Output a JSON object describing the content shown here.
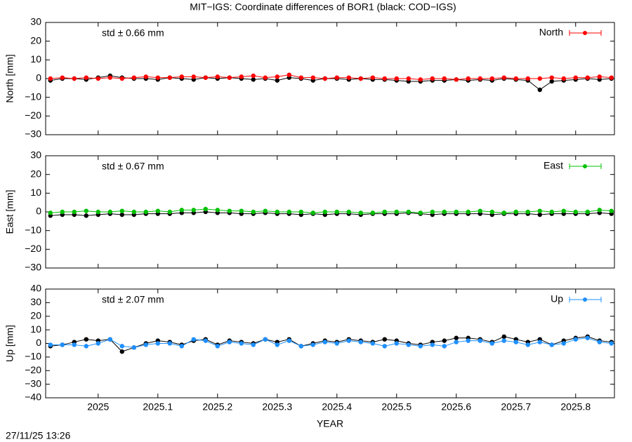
{
  "chart_data": [
    {
      "type": "line",
      "title": "MIT−IGS: Coordinate differences of BOR1 (black: COD−IGS)",
      "ylabel": "North [mm]",
      "annotation": "std ± 0.66 mm",
      "xlim": [
        2024.912,
        2025.865
      ],
      "ylim": [
        -30,
        30
      ],
      "yticks": [
        {
          "value": -30,
          "label": "−30"
        },
        {
          "value": -20,
          "label": "−20"
        },
        {
          "value": -10,
          "label": "−10"
        },
        0,
        10,
        20,
        30
      ],
      "x": [
        2024.92,
        2024.94,
        2024.96,
        2024.98,
        2025.0,
        2025.02,
        2025.04,
        2025.06,
        2025.08,
        2025.1,
        2025.12,
        2025.14,
        2025.16,
        2025.18,
        2025.2,
        2025.22,
        2025.24,
        2025.26,
        2025.28,
        2025.3,
        2025.32,
        2025.34,
        2025.36,
        2025.38,
        2025.4,
        2025.42,
        2025.44,
        2025.46,
        2025.48,
        2025.5,
        2025.52,
        2025.54,
        2025.56,
        2025.58,
        2025.6,
        2025.62,
        2025.64,
        2025.66,
        2025.68,
        2025.7,
        2025.72,
        2025.74,
        2025.76,
        2025.78,
        2025.8,
        2025.82,
        2025.84,
        2025.86
      ],
      "legend": "top-right",
      "series": [
        {
          "color": "#000000",
          "values": [
            -1,
            0,
            0,
            -0.5,
            0.5,
            1.5,
            0.5,
            0,
            0,
            -0.5,
            0.5,
            0,
            -0.5,
            0.5,
            0,
            0.5,
            0,
            -0.5,
            0,
            -1,
            0.5,
            0,
            -1,
            0,
            0,
            -0.5,
            0,
            -0.5,
            -0.5,
            -1,
            -1.5,
            -1.5,
            -1,
            -1,
            -0.5,
            -1,
            -0.5,
            -1,
            0,
            -0.5,
            -1,
            -6,
            -1.5,
            -1,
            -0.5,
            0,
            -0.5,
            0
          ]
        },
        {
          "name": "North",
          "color": "#ff0000",
          "values": [
            0,
            0.5,
            0,
            0.5,
            0,
            0.5,
            0,
            0.5,
            1,
            0.5,
            0.5,
            1,
            1,
            0.5,
            1,
            0.5,
            1,
            1.5,
            0.5,
            1,
            2,
            0.5,
            0.5,
            0,
            0.5,
            0.5,
            0,
            0.5,
            0,
            0,
            0,
            -0.5,
            0,
            0,
            -0.5,
            0,
            0,
            0,
            0.5,
            0,
            0,
            0,
            0.5,
            0,
            0.5,
            0.5,
            1,
            0.5
          ]
        }
      ]
    },
    {
      "type": "line",
      "ylabel": "East [mm]",
      "annotation": "std ± 0.67 mm",
      "xlim": [
        2024.912,
        2025.865
      ],
      "ylim": [
        -30,
        30
      ],
      "yticks": [
        {
          "value": -30,
          "label": "−30"
        },
        {
          "value": -20,
          "label": "−20"
        },
        {
          "value": -10,
          "label": "−10"
        },
        0,
        10,
        20,
        30
      ],
      "x": [
        2024.92,
        2024.94,
        2024.96,
        2024.98,
        2025.0,
        2025.02,
        2025.04,
        2025.06,
        2025.08,
        2025.1,
        2025.12,
        2025.14,
        2025.16,
        2025.18,
        2025.2,
        2025.22,
        2025.24,
        2025.26,
        2025.28,
        2025.3,
        2025.32,
        2025.34,
        2025.36,
        2025.38,
        2025.4,
        2025.42,
        2025.44,
        2025.46,
        2025.48,
        2025.5,
        2025.52,
        2025.54,
        2025.56,
        2025.58,
        2025.6,
        2025.62,
        2025.64,
        2025.66,
        2025.68,
        2025.7,
        2025.72,
        2025.74,
        2025.76,
        2025.78,
        2025.8,
        2025.82,
        2025.84,
        2025.86
      ],
      "legend": "top-right",
      "series": [
        {
          "color": "#000000",
          "values": [
            -2,
            -1.5,
            -1.5,
            -2,
            -1.5,
            -1,
            -1.5,
            -1.5,
            -1,
            -1,
            -1,
            -0.5,
            -0.5,
            0,
            -0.5,
            -0.5,
            -1,
            -1,
            -0.5,
            -1,
            -1,
            -1.5,
            -1,
            -1.5,
            -1,
            -1,
            -1.5,
            -1,
            -1,
            -1,
            -0.5,
            -1,
            -1.5,
            -1,
            -1,
            -1,
            -1,
            -1.5,
            -1,
            -1,
            -1,
            -1.5,
            -1,
            -1,
            -1,
            -1,
            -0.5,
            -1
          ]
        },
        {
          "name": "East",
          "color": "#00c000",
          "values": [
            -0.5,
            0,
            0,
            0.5,
            0,
            0,
            0.5,
            0,
            0,
            0.5,
            0,
            1,
            1,
            1.5,
            1,
            0.5,
            0.5,
            0,
            0.5,
            0,
            0,
            0,
            -0.5,
            0,
            0,
            0,
            -0.5,
            -0.5,
            0,
            0,
            0,
            -0.5,
            0,
            0,
            0,
            0,
            0.5,
            0,
            -0.5,
            0,
            0,
            0.5,
            0,
            0.5,
            0,
            0,
            1,
            0.5
          ]
        }
      ]
    },
    {
      "type": "line",
      "ylabel": "Up [mm]",
      "annotation": "std ± 2.07 mm",
      "xlabel": "YEAR",
      "xlim": [
        2024.912,
        2025.865
      ],
      "ylim": [
        -40,
        40
      ],
      "xticks": [
        2025,
        2025.1,
        2025.2,
        2025.3,
        2025.4,
        2025.5,
        2025.6,
        2025.7,
        2025.8
      ],
      "yticks": [
        {
          "value": -40,
          "label": "−40"
        },
        {
          "value": -30,
          "label": "−30"
        },
        {
          "value": -20,
          "label": "−20"
        },
        {
          "value": -10,
          "label": "−10"
        },
        0,
        10,
        20,
        30,
        40
      ],
      "x": [
        2024.92,
        2024.94,
        2024.96,
        2024.98,
        2025.0,
        2025.02,
        2025.04,
        2025.06,
        2025.08,
        2025.1,
        2025.12,
        2025.14,
        2025.16,
        2025.18,
        2025.2,
        2025.22,
        2025.24,
        2025.26,
        2025.28,
        2025.3,
        2025.32,
        2025.34,
        2025.36,
        2025.38,
        2025.4,
        2025.42,
        2025.44,
        2025.46,
        2025.48,
        2025.5,
        2025.52,
        2025.54,
        2025.56,
        2025.58,
        2025.6,
        2025.62,
        2025.64,
        2025.66,
        2025.68,
        2025.7,
        2025.72,
        2025.74,
        2025.76,
        2025.78,
        2025.8,
        2025.82,
        2025.84,
        2025.86
      ],
      "legend": "top-right",
      "series": [
        {
          "color": "#000000",
          "values": [
            -2,
            -1,
            1,
            3,
            2,
            3,
            -6,
            -3,
            0,
            2,
            1,
            -1,
            2,
            3,
            -1,
            2,
            1,
            0,
            3,
            1,
            3,
            -2,
            0,
            2,
            1,
            3,
            2,
            1,
            3,
            2,
            0,
            -1,
            1,
            2,
            4,
            4,
            3,
            1,
            5,
            3,
            1,
            3,
            -1,
            2,
            4,
            5,
            2,
            1
          ]
        },
        {
          "name": "Up",
          "color": "#1e90ff",
          "values": [
            -1,
            -1,
            -1,
            -2,
            0,
            3,
            -2,
            -3,
            -1,
            0,
            0,
            -2,
            3,
            2,
            -2,
            1,
            0,
            -1,
            3,
            -1,
            2,
            -2,
            -1,
            1,
            0,
            2,
            1,
            0,
            -2,
            0,
            -1,
            -2,
            -1,
            -2,
            1,
            2,
            2,
            0,
            2,
            1,
            -1,
            1,
            -1,
            0,
            3,
            4,
            1,
            0
          ]
        }
      ]
    }
  ],
  "footer": "27/11/25 13:26"
}
